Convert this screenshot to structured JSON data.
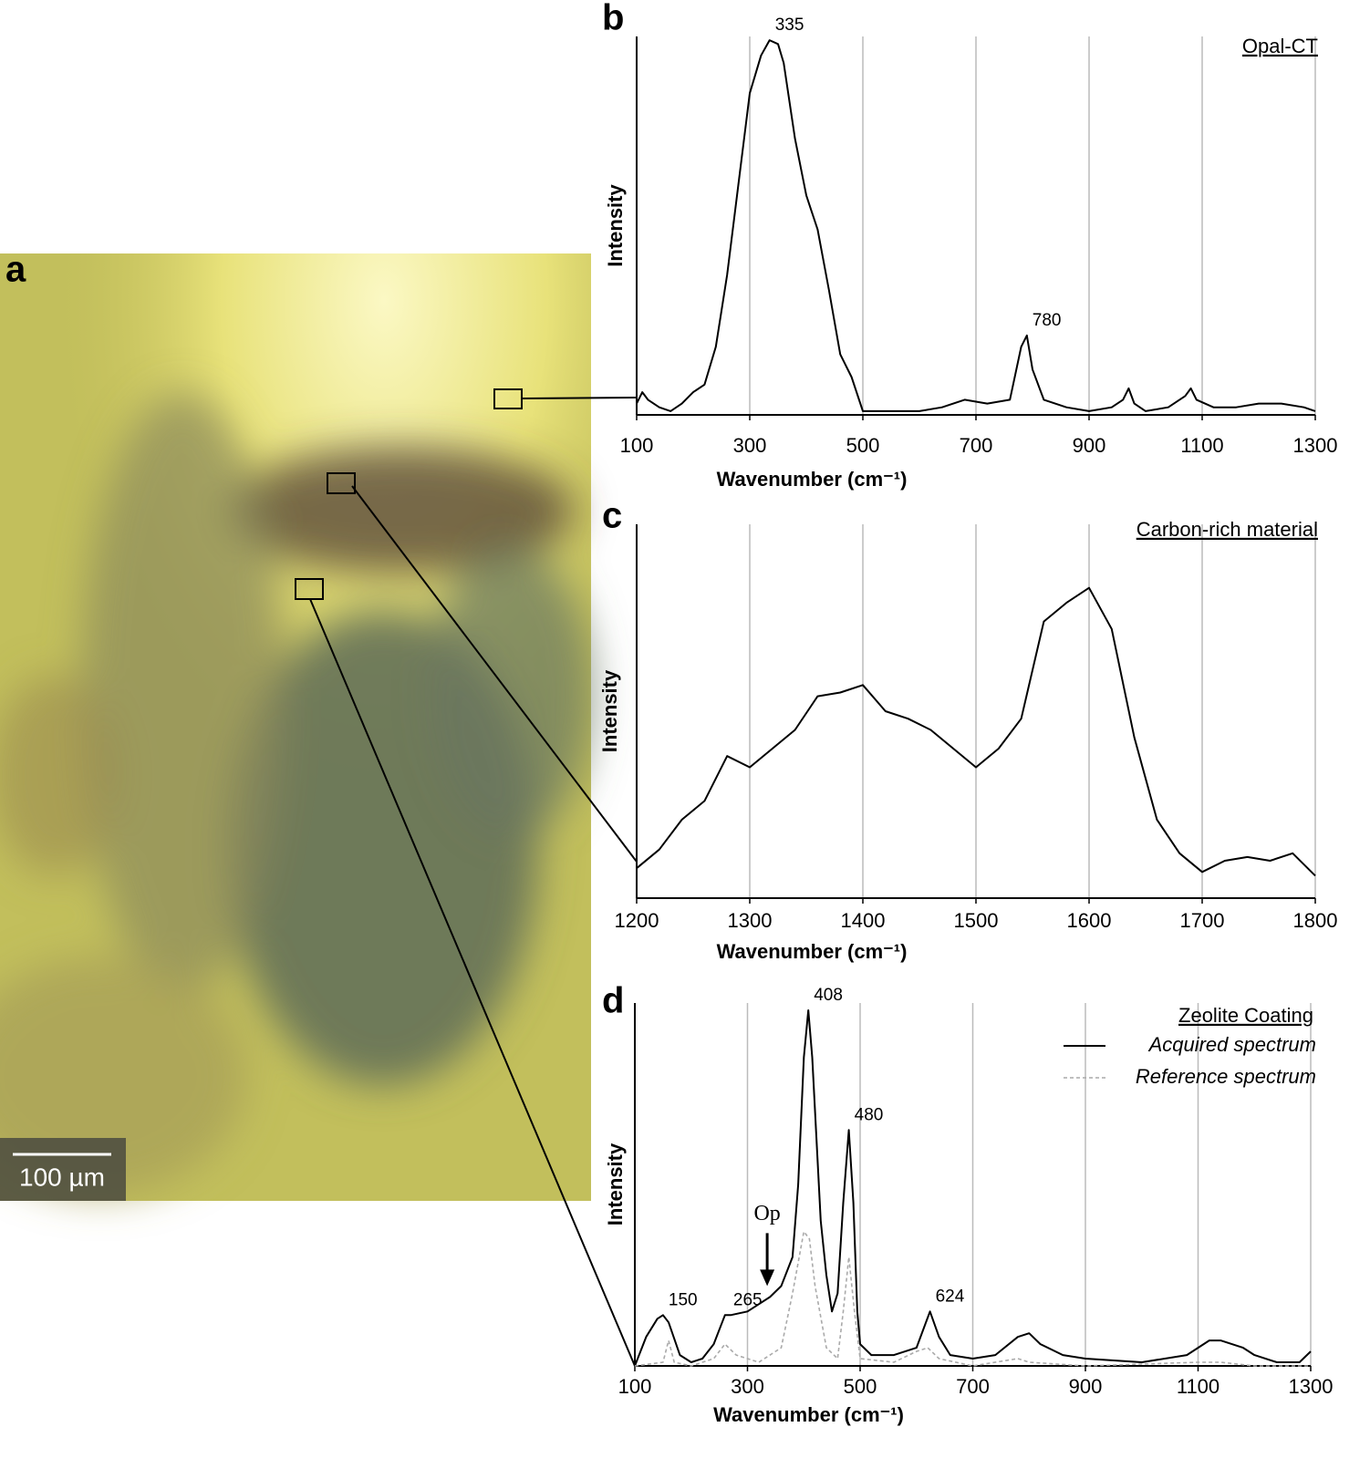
{
  "image": {
    "label": "a",
    "scale_bar": "100 µm"
  },
  "chart_data": [
    {
      "type": "line",
      "panel": "b",
      "title": "Opal-CT",
      "xlabel": "Wavenumber (cm⁻¹)",
      "ylabel": "Intensity",
      "xlim": [
        100,
        1300
      ],
      "ylim": [
        0,
        100
      ],
      "xticks": [
        100,
        300,
        500,
        700,
        900,
        1100,
        1300
      ],
      "grid": true,
      "series": [
        {
          "name": "Acquired spectrum",
          "color": "#000000",
          "style": "solid",
          "x": [
            100,
            110,
            120,
            140,
            160,
            180,
            200,
            220,
            240,
            260,
            280,
            300,
            320,
            335,
            350,
            360,
            380,
            400,
            420,
            440,
            460,
            480,
            500,
            520,
            560,
            600,
            640,
            680,
            720,
            760,
            780,
            790,
            800,
            820,
            860,
            900,
            940,
            960,
            970,
            980,
            1000,
            1040,
            1070,
            1080,
            1090,
            1120,
            1160,
            1200,
            1240,
            1280,
            1300
          ],
          "values": [
            3,
            6,
            4,
            2,
            1,
            3,
            6,
            8,
            18,
            37,
            61,
            85,
            95,
            99,
            98,
            93,
            73,
            58,
            49,
            33,
            16,
            10,
            1,
            1,
            1,
            1,
            2,
            4,
            3,
            4,
            18,
            21,
            12,
            4,
            2,
            1,
            2,
            4,
            7,
            3,
            1,
            2,
            5,
            7,
            4,
            2,
            2,
            3,
            3,
            2,
            1
          ]
        }
      ],
      "annotations": [
        {
          "label": "335",
          "x": 335
        },
        {
          "label": "780",
          "x": 790
        }
      ]
    },
    {
      "type": "line",
      "panel": "c",
      "title": "Carbon-rich material",
      "xlabel": "Wavenumber (cm⁻¹)",
      "ylabel": "Intensity",
      "xlim": [
        1200,
        1800
      ],
      "ylim": [
        0,
        100
      ],
      "xticks": [
        1200,
        1300,
        1400,
        1500,
        1600,
        1700,
        1800
      ],
      "grid": true,
      "series": [
        {
          "name": "Acquired spectrum",
          "color": "#000000",
          "style": "solid",
          "x": [
            1200,
            1220,
            1240,
            1260,
            1280,
            1300,
            1320,
            1340,
            1360,
            1380,
            1400,
            1420,
            1440,
            1460,
            1480,
            1500,
            1520,
            1540,
            1560,
            1580,
            1600,
            1620,
            1640,
            1660,
            1680,
            1700,
            1720,
            1740,
            1760,
            1780,
            1800
          ],
          "values": [
            8,
            13,
            21,
            26,
            38,
            35,
            40,
            45,
            54,
            55,
            57,
            50,
            48,
            45,
            40,
            35,
            40,
            48,
            74,
            79,
            83,
            72,
            43,
            21,
            12,
            7,
            10,
            11,
            10,
            12,
            6
          ]
        }
      ],
      "annotations": []
    },
    {
      "type": "line",
      "panel": "d",
      "title": "Zeolite Coating",
      "xlabel": "Wavenumber (cm⁻¹)",
      "ylabel": "Intensity",
      "xlim": [
        100,
        1300
      ],
      "ylim": [
        0,
        100
      ],
      "xticks": [
        100,
        300,
        500,
        700,
        900,
        1100,
        1300
      ],
      "grid": true,
      "legend": "upper right",
      "series": [
        {
          "name": "Acquired spectrum",
          "color": "#000000",
          "style": "solid",
          "x": [
            100,
            120,
            140,
            150,
            160,
            180,
            200,
            220,
            240,
            260,
            270,
            300,
            320,
            340,
            360,
            380,
            390,
            400,
            408,
            415,
            430,
            440,
            450,
            460,
            470,
            480,
            488,
            495,
            500,
            520,
            560,
            600,
            624,
            640,
            660,
            700,
            740,
            780,
            800,
            820,
            860,
            900,
            1000,
            1080,
            1120,
            1140,
            1180,
            1200,
            1240,
            1280,
            1300
          ],
          "values": [
            0,
            8,
            13,
            14,
            12,
            3,
            1,
            2,
            6,
            14,
            14,
            15,
            17,
            19,
            22,
            30,
            50,
            85,
            98,
            85,
            40,
            25,
            15,
            20,
            45,
            65,
            45,
            15,
            6,
            3,
            3,
            5,
            15,
            8,
            3,
            2,
            3,
            8,
            9,
            6,
            3,
            2,
            1,
            3,
            7,
            7,
            5,
            3,
            1,
            1,
            4
          ]
        },
        {
          "name": "Reference spectrum",
          "color": "#aaaaaa",
          "style": "dashed",
          "x": [
            100,
            150,
            160,
            170,
            200,
            240,
            260,
            280,
            320,
            360,
            380,
            400,
            410,
            420,
            440,
            460,
            470,
            480,
            490,
            500,
            560,
            600,
            620,
            640,
            700,
            780,
            800,
            900,
            1100,
            1140,
            1200,
            1300
          ],
          "values": [
            0,
            1,
            7,
            1,
            0,
            2,
            6,
            3,
            1,
            5,
            20,
            37,
            35,
            22,
            5,
            2,
            15,
            30,
            15,
            2,
            1,
            4,
            5,
            2,
            0,
            2,
            1,
            0,
            1,
            1,
            0,
            0
          ]
        }
      ],
      "annotations": [
        {
          "label": "150",
          "x": 150
        },
        {
          "label": "265",
          "x": 265
        },
        {
          "label": "408",
          "x": 408
        },
        {
          "label": "480",
          "x": 480
        },
        {
          "label": "624",
          "x": 624
        },
        {
          "label": "Op",
          "x": 335,
          "arrow": true
        }
      ]
    }
  ]
}
